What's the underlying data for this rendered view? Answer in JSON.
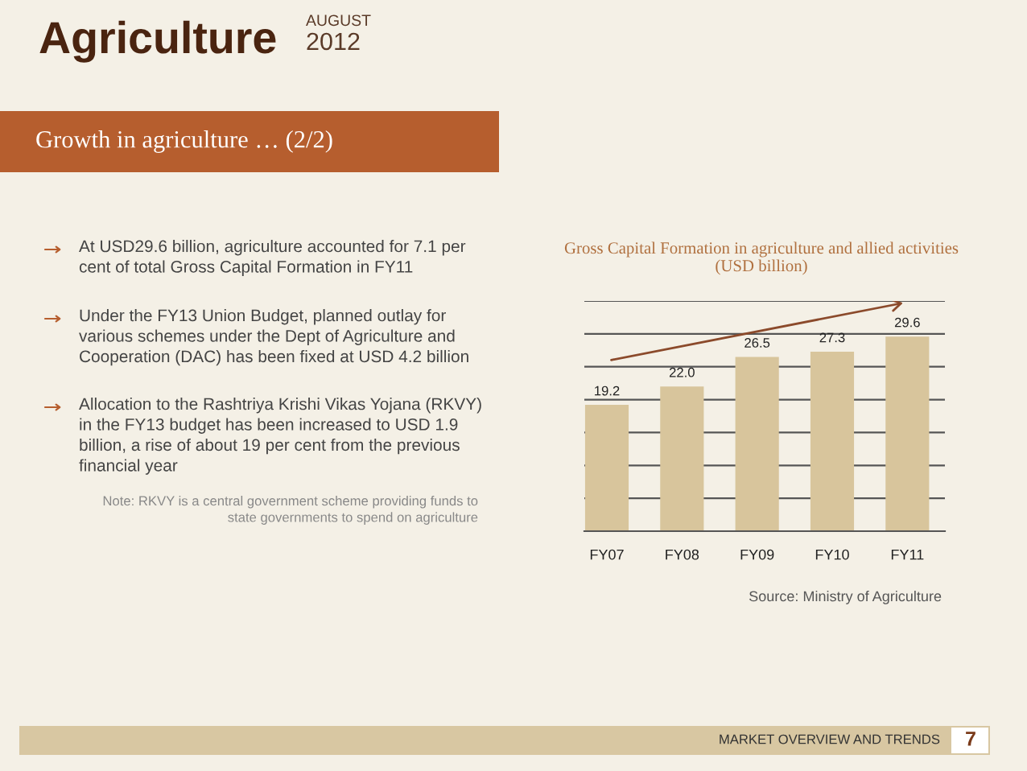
{
  "chart_data": {
    "type": "bar",
    "title": "Gross Capital Formation in agriculture and allied activities",
    "subtitle": "(USD billion)",
    "categories": [
      "FY07",
      "FY08",
      "FY09",
      "FY10",
      "FY11"
    ],
    "values": [
      19.2,
      22.0,
      26.5,
      27.3,
      29.6
    ],
    "value_labels": [
      "19.2",
      "22.0",
      "26.5",
      "27.3",
      "29.6"
    ],
    "color": "#d8c59c",
    "ylim": [
      0,
      35
    ],
    "yticks": [
      {
        "value": 0,
        "label": null
      },
      {
        "value": 5,
        "label": null
      },
      {
        "value": 10,
        "label": null
      },
      {
        "value": 15,
        "label": null
      },
      {
        "value": 20,
        "label": null
      },
      {
        "value": 25,
        "label": null
      },
      {
        "value": 30,
        "label": null
      },
      {
        "value": 35,
        "label": null
      }
    ],
    "grid": "y",
    "tick_labels": "x",
    "annotations": [
      "Agriculture",
      "AUGUST",
      "2012",
      "Growth in agriculture … (2/2)",
      "At USD29.6 billion, agriculture accounted for 7.1 per\ncent of total Gross Capital Formation in FY11",
      "Under the FY13 Union Budget, planned outlay for\nvarious schemes under the Dept of Agriculture and\nCooperation (DAC) has been fixed at USD 4.2 billion",
      "Allocation to the Rashtriya Krishi Vikas Yojana (RKVY)\nin the FY13 budget has been increased to USD 1.9\nbillion, a rise of about 19 per cent from the previous\nfinancial year",
      "Note: RKVY is a central government scheme providing funds to\nstate governments to spend on agriculture",
      "Source: Ministry of Agriculture",
      "MARKET OVERVIEW AND TRENDS",
      "7"
    ]
  }
}
